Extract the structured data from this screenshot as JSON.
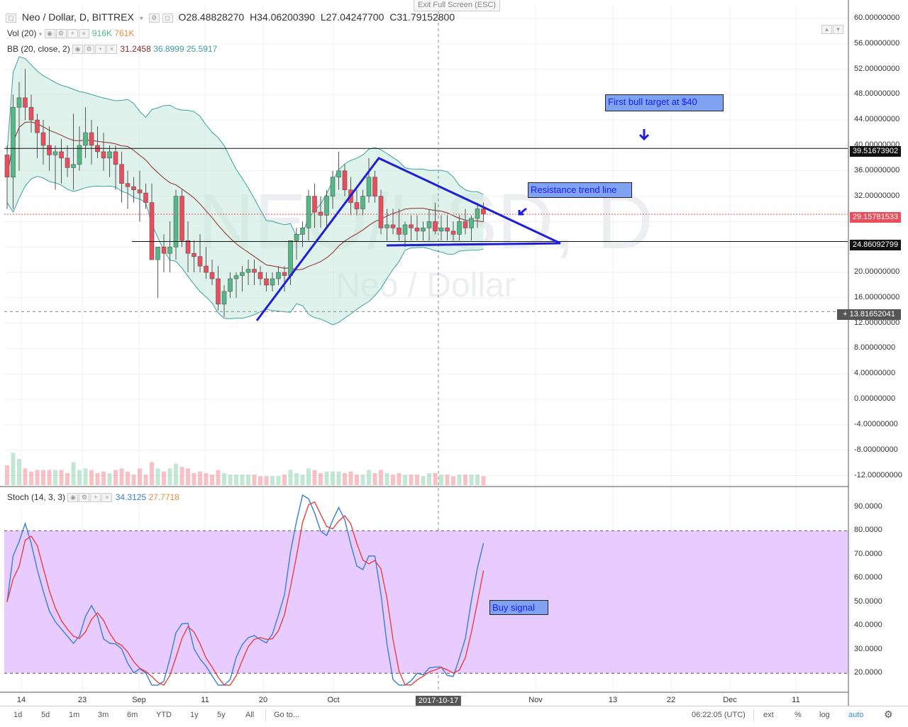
{
  "header": {
    "symbol": "Neo / Dollar, D, BITTREX",
    "open": "O28.48828270",
    "high": "H34.06200390",
    "low": "L27.04247700",
    "close": "C31.79152800",
    "exit_fullscreen": "Exit Full Screen (ESC)"
  },
  "indicators": {
    "vol_label": "Vol (20)",
    "vol_val1": "916K",
    "vol_val2": "761K",
    "bb_label": "BB (20, close, 2)",
    "bb_mid": "31.2458",
    "bb_up": "36.8999",
    "bb_low": "25.5917",
    "stoch_label": "Stoch (14, 3, 3)",
    "stoch_k": "34.3125",
    "stoch_d": "27.7718"
  },
  "watermark": {
    "big": "NEO/USD, D",
    "sub": "Neo / Dollar"
  },
  "price_axis": {
    "labels": [
      "60.00000000",
      "56.00000000",
      "52.00000000",
      "48.00000000",
      "44.00000000",
      "40.00000000",
      "36.00000000",
      "32.00000000",
      "28.00000000",
      "24.00000000",
      "20.00000000",
      "16.00000000",
      "12.00000000",
      "8.00000000",
      "4.00000000",
      "0.00000000",
      "-4.00000000",
      "-8.00000000",
      "-12.00000000"
    ],
    "tags": {
      "resistance": "39.51673902",
      "last": "29.15781533",
      "support": "24.86092799",
      "crosshair": "13.81652041"
    }
  },
  "stoch_axis": {
    "labels": [
      "90.0000",
      "80.0000",
      "70.0000",
      "60.0000",
      "50.0000",
      "40.0000",
      "30.0000",
      "20.0000"
    ]
  },
  "time_axis": {
    "labels": [
      "14",
      "23",
      "Sep",
      "11",
      "20",
      "Oct",
      "Nov",
      "13",
      "22",
      "Dec",
      "11"
    ],
    "active": "2017-10-17"
  },
  "annotations": {
    "bull_target": "First bull target at $40",
    "resistance": "Resistance trend line",
    "buy_signal": "Buy signal"
  },
  "toolbar": {
    "ranges": [
      "1d",
      "5d",
      "1m",
      "3m",
      "6m",
      "YTD",
      "1y",
      "5y",
      "All"
    ],
    "goto": "Go to...",
    "time": "06:22:05 (UTC)",
    "ext": "ext",
    "percent": "%",
    "log": "log",
    "auto": "auto"
  },
  "colors": {
    "up": "#53b987",
    "down": "#eb4d5c",
    "bb_fill": "#c9eadd",
    "bb_line": "#3ea1a1",
    "bb_mid": "#8b2b2b",
    "trend": "#1f1fd6",
    "stoch_bg": "#e8ccff",
    "stoch_k": "#3a7dd8",
    "stoch_d": "#e84040"
  },
  "chart_data": {
    "type": "candlestick",
    "title": "Neo / Dollar, D, BITTREX",
    "ylim": [
      -12,
      62
    ],
    "x_labels": [
      "14",
      "23",
      "Sep",
      "11",
      "20",
      "Oct",
      "Nov",
      "13",
      "22",
      "Dec",
      "11"
    ],
    "ohlc": [
      [
        38.5,
        40,
        30,
        35
      ],
      [
        35,
        48,
        30,
        46
      ],
      [
        46,
        50,
        36,
        47.5
      ],
      [
        47.5,
        52,
        44,
        46
      ],
      [
        46,
        48,
        42,
        44
      ],
      [
        44,
        45,
        38,
        42
      ],
      [
        42,
        44,
        37,
        40
      ],
      [
        40,
        43,
        36,
        38.5
      ],
      [
        38.5,
        40,
        33,
        39
      ],
      [
        39,
        41,
        34,
        38
      ],
      [
        38,
        40,
        35,
        36.5
      ],
      [
        36.5,
        45,
        33,
        37
      ],
      [
        37,
        43,
        36,
        40
      ],
      [
        40,
        46,
        38,
        42
      ],
      [
        42,
        44,
        37,
        40
      ],
      [
        40,
        43,
        38,
        39
      ],
      [
        39,
        42,
        36,
        38
      ],
      [
        38,
        40,
        35,
        39
      ],
      [
        39,
        40,
        33,
        37
      ],
      [
        37,
        39,
        31,
        34
      ],
      [
        34,
        36,
        30,
        33.5
      ],
      [
        33.5,
        35,
        31,
        33
      ],
      [
        33,
        36,
        28,
        32.5
      ],
      [
        32.5,
        34,
        30,
        31
      ],
      [
        31,
        34,
        22,
        22
      ],
      [
        22,
        24,
        16,
        24
      ],
      [
        24,
        26,
        20,
        23
      ],
      [
        23,
        28,
        20,
        24
      ],
      [
        24,
        33,
        22,
        32
      ],
      [
        32,
        33,
        24,
        25
      ],
      [
        25,
        28,
        20,
        23
      ],
      [
        23,
        25,
        20,
        22.5
      ],
      [
        22.5,
        26,
        20,
        21
      ],
      [
        21,
        24,
        19,
        20
      ],
      [
        20,
        22,
        18,
        19
      ],
      [
        19,
        21,
        14,
        15
      ],
      [
        15,
        18,
        13,
        17
      ],
      [
        17,
        20,
        16,
        19
      ],
      [
        19,
        20,
        16,
        19.5
      ],
      [
        19.5,
        21,
        17,
        20
      ],
      [
        20,
        22,
        18,
        20.5
      ],
      [
        20.5,
        22,
        18,
        20
      ],
      [
        20,
        21,
        18,
        19
      ],
      [
        19,
        20,
        17,
        18
      ],
      [
        18,
        20,
        17,
        19
      ],
      [
        19,
        21,
        18,
        20
      ],
      [
        20,
        21,
        17,
        19.5
      ],
      [
        19.5,
        25,
        18,
        25
      ],
      [
        25,
        27,
        22,
        26
      ],
      [
        26,
        28,
        24,
        27
      ],
      [
        27,
        33,
        25,
        32
      ],
      [
        32,
        34,
        27,
        29.5
      ],
      [
        29.5,
        32,
        27,
        29
      ],
      [
        29,
        33,
        27,
        32
      ],
      [
        32,
        36,
        30,
        35
      ],
      [
        35,
        39,
        33,
        36
      ],
      [
        36,
        37,
        32,
        33
      ],
      [
        33,
        35,
        29,
        31
      ],
      [
        31,
        33,
        29,
        30
      ],
      [
        30,
        33,
        29,
        32
      ],
      [
        32,
        38,
        31,
        35
      ],
      [
        35,
        36,
        31,
        32
      ],
      [
        32,
        33,
        26,
        27
      ],
      [
        27,
        30,
        25,
        27.5
      ],
      [
        27.5,
        30,
        26,
        27
      ],
      [
        27,
        30,
        25,
        26
      ],
      [
        26,
        28,
        24,
        27.5
      ],
      [
        27.5,
        29,
        25,
        27
      ],
      [
        27,
        29,
        25,
        26.5
      ],
      [
        26.5,
        28,
        25,
        27
      ],
      [
        27,
        30,
        25,
        28
      ],
      [
        28,
        31,
        26,
        26.5
      ],
      [
        26.5,
        29,
        25,
        27
      ],
      [
        27,
        29,
        25,
        26.5
      ],
      [
        26.5,
        28,
        25,
        26
      ],
      [
        26,
        29,
        25,
        28
      ],
      [
        28,
        30,
        26,
        27
      ],
      [
        27,
        29,
        25,
        28.5
      ],
      [
        28.5,
        31,
        27,
        30
      ],
      [
        30,
        31,
        28,
        29.2
      ]
    ],
    "resistance_level": 39.51673902,
    "support_level": 24.86092799,
    "last_price": 29.15781533,
    "bollinger": {
      "mid": 31.2458,
      "upper": 36.8999,
      "lower": 25.5917
    },
    "stochastic": {
      "k": 34.3125,
      "d": 27.7718,
      "ylim": [
        15,
        95
      ],
      "overbought": 80,
      "oversold": 20
    }
  }
}
